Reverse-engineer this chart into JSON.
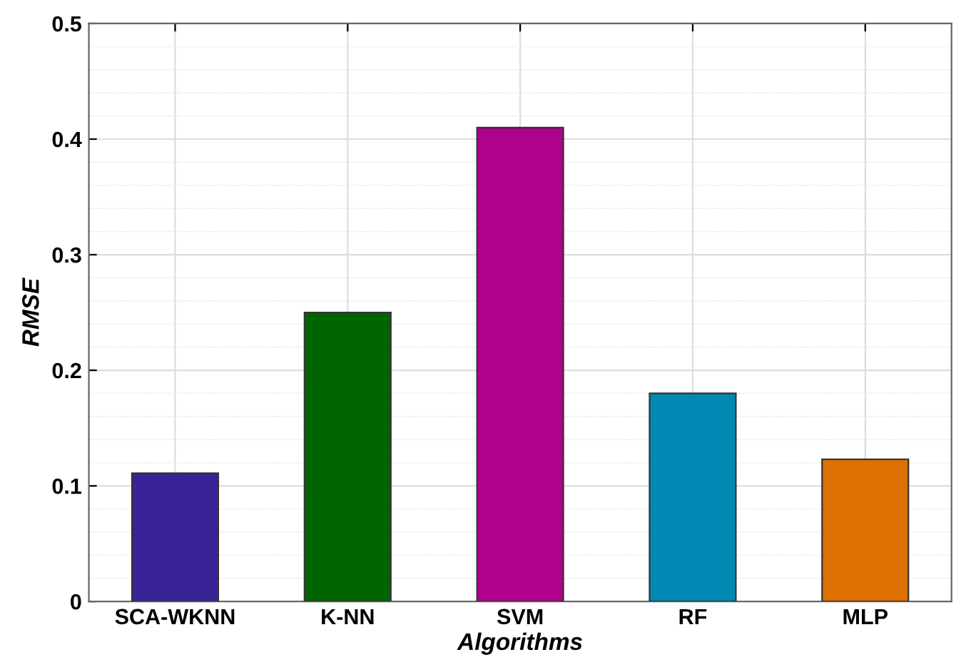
{
  "chart_data": {
    "type": "bar",
    "xlabel": "Algorithms",
    "ylabel": "RMSE",
    "categories": [
      "SCA-WKNN",
      "K-NN",
      "SVM",
      "RF",
      "MLP"
    ],
    "values": [
      0.111,
      0.25,
      0.41,
      0.18,
      0.123
    ],
    "colors": [
      "#3a2397",
      "#006400",
      "#b0008e",
      "#008ab3",
      "#dd7000"
    ],
    "ylim": [
      0,
      0.5
    ],
    "yticks": [
      0,
      0.1,
      0.2,
      0.3,
      0.4,
      0.5
    ],
    "grid": true
  }
}
